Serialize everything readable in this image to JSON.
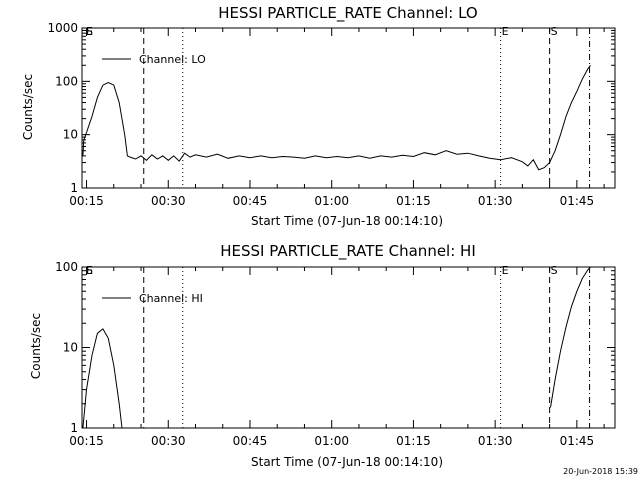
{
  "chart_data": [
    {
      "type": "line",
      "title": "HESSI PARTICLE_RATE Channel: LO",
      "xlabel": "Start Time (07-Jun-18 00:14:10)",
      "ylabel": "Counts/sec",
      "yscale": "log",
      "ylim": [
        1,
        1000
      ],
      "ytick_labels": [
        "1",
        "10",
        "100",
        "1000"
      ],
      "xlim": [
        "00:14:10",
        "01:52:00"
      ],
      "xtick_labels": [
        "00:15",
        "00:30",
        "00:45",
        "01:00",
        "01:15",
        "01:30",
        "01:45"
      ],
      "legend": {
        "label": "Channel: LO",
        "placement": "top-left"
      },
      "event_markers": [
        {
          "label": "E",
          "time": "00:14:10",
          "style": "solid"
        },
        {
          "label": "S",
          "time": "00:14:10",
          "style": "solid"
        },
        {
          "label": "",
          "time": "00:25:30",
          "style": "dashed"
        },
        {
          "label": "",
          "time": "00:32:40",
          "style": "dotted"
        },
        {
          "label": "E",
          "time": "01:31:00",
          "style": "dotted"
        },
        {
          "label": "S",
          "time": "01:40:00",
          "style": "dashed"
        },
        {
          "label": "",
          "time": "01:47:20",
          "style": "dash-dot"
        }
      ],
      "series": [
        {
          "name": "Channel: LO",
          "points": [
            [
              "00:14:20",
              4
            ],
            [
              "00:14:30",
              8
            ],
            [
              "00:15:00",
              11
            ],
            [
              "00:16:00",
              22
            ],
            [
              "00:17:00",
              50
            ],
            [
              "00:18:00",
              85
            ],
            [
              "00:19:00",
              95
            ],
            [
              "00:20:00",
              85
            ],
            [
              "00:21:00",
              40
            ],
            [
              "00:22:00",
              10
            ],
            [
              "00:22:30",
              4
            ],
            [
              "00:23:00",
              3.8
            ],
            [
              "00:24:00",
              3.5
            ],
            [
              "00:25:00",
              4
            ],
            [
              "00:26:00",
              3.3
            ],
            [
              "00:27:00",
              4.2
            ],
            [
              "00:28:00",
              3.5
            ],
            [
              "00:29:00",
              4
            ],
            [
              "00:30:00",
              3.3
            ],
            [
              "00:31:00",
              4
            ],
            [
              "00:32:00",
              3.2
            ],
            [
              "00:33:00",
              4.5
            ],
            [
              "00:34:00",
              3.8
            ],
            [
              "00:35:00",
              4.2
            ],
            [
              "00:37:00",
              3.8
            ],
            [
              "00:39:00",
              4.3
            ],
            [
              "00:41:00",
              3.6
            ],
            [
              "00:43:00",
              4
            ],
            [
              "00:45:00",
              3.7
            ],
            [
              "00:47:00",
              4
            ],
            [
              "00:49:00",
              3.7
            ],
            [
              "00:51:00",
              3.9
            ],
            [
              "00:53:00",
              3.8
            ],
            [
              "00:55:00",
              3.6
            ],
            [
              "00:57:00",
              4
            ],
            [
              "00:59:00",
              3.7
            ],
            [
              "01:01:00",
              3.9
            ],
            [
              "01:03:00",
              3.7
            ],
            [
              "01:05:00",
              4
            ],
            [
              "01:07:00",
              3.6
            ],
            [
              "01:09:00",
              4
            ],
            [
              "01:11:00",
              3.8
            ],
            [
              "01:13:00",
              4.1
            ],
            [
              "01:15:00",
              3.9
            ],
            [
              "01:17:00",
              4.6
            ],
            [
              "01:19:00",
              4.2
            ],
            [
              "01:21:00",
              5
            ],
            [
              "01:23:00",
              4.3
            ],
            [
              "01:25:00",
              4.5
            ],
            [
              "01:27:00",
              4
            ],
            [
              "01:29:00",
              3.6
            ],
            [
              "01:31:00",
              3.4
            ],
            [
              "01:33:00",
              3.7
            ],
            [
              "01:35:00",
              3.1
            ],
            [
              "01:36:00",
              2.6
            ],
            [
              "01:37:00",
              3.4
            ],
            [
              "01:38:00",
              2.2
            ],
            [
              "01:39:00",
              2.4
            ],
            [
              "01:40:00",
              3
            ],
            [
              "01:41:00",
              5
            ],
            [
              "01:42:00",
              10
            ],
            [
              "01:43:00",
              22
            ],
            [
              "01:44:00",
              40
            ],
            [
              "01:45:00",
              65
            ],
            [
              "01:46:00",
              110
            ],
            [
              "01:47:00",
              170
            ],
            [
              "01:47:30",
              200
            ]
          ]
        }
      ]
    },
    {
      "type": "line",
      "title": "HESSI PARTICLE_RATE Channel: HI",
      "xlabel": "Start Time (07-Jun-18 00:14:10)",
      "ylabel": "Counts/sec",
      "yscale": "log",
      "ylim": [
        1,
        100
      ],
      "ytick_labels": [
        "1",
        "10",
        "100"
      ],
      "xlim": [
        "00:14:10",
        "01:52:00"
      ],
      "xtick_labels": [
        "00:15",
        "00:30",
        "00:45",
        "01:00",
        "01:15",
        "01:30",
        "01:45"
      ],
      "legend": {
        "label": "Channel: HI",
        "placement": "top-left"
      },
      "event_markers": [
        {
          "label": "E",
          "time": "00:14:10",
          "style": "solid"
        },
        {
          "label": "S",
          "time": "00:14:10",
          "style": "solid"
        },
        {
          "label": "",
          "time": "00:25:30",
          "style": "dashed"
        },
        {
          "label": "",
          "time": "00:32:40",
          "style": "dotted"
        },
        {
          "label": "E",
          "time": "01:31:00",
          "style": "dotted"
        },
        {
          "label": "S",
          "time": "01:40:00",
          "style": "dashed"
        },
        {
          "label": "",
          "time": "01:47:20",
          "style": "dash-dot"
        }
      ],
      "series": [
        {
          "name": "Channel: HI",
          "points": [
            [
              "00:14:20",
              1
            ],
            [
              "00:15:00",
              3
            ],
            [
              "00:16:00",
              8
            ],
            [
              "00:17:00",
              15
            ],
            [
              "00:18:00",
              17
            ],
            [
              "00:19:00",
              13
            ],
            [
              "00:20:00",
              6
            ],
            [
              "00:21:00",
              2
            ],
            [
              "00:21:30",
              1
            ],
            null,
            [
              "01:40:10",
              1.8
            ],
            [
              "01:41:00",
              4
            ],
            [
              "01:42:00",
              9
            ],
            [
              "01:43:00",
              18
            ],
            [
              "01:44:00",
              32
            ],
            [
              "01:45:00",
              50
            ],
            [
              "01:46:00",
              72
            ],
            [
              "01:47:00",
              92
            ],
            [
              "01:47:30",
              100
            ]
          ]
        }
      ]
    }
  ],
  "footer": {
    "timestamp": "20-Jun-2018 15:39"
  }
}
